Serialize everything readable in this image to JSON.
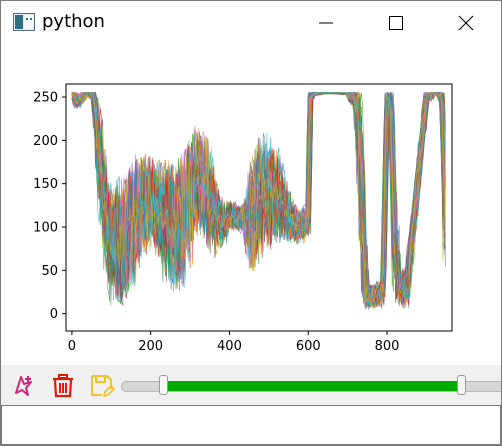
{
  "window": {
    "title": "python"
  },
  "icons": {
    "app": "python-window-icon",
    "minimize": "minimize-icon",
    "maximize": "maximize-icon",
    "close": "close-icon"
  },
  "toolbar": {
    "buttons": [
      {
        "name": "select-tool-button",
        "icon": "magic-select-icon",
        "color": "#d4237a"
      },
      {
        "name": "delete-button",
        "icon": "trash-icon",
        "color": "#d81e06"
      },
      {
        "name": "save-button",
        "icon": "save-icon",
        "color": "#f4ea2a"
      }
    ],
    "range_slider": {
      "min": 0,
      "max": 1,
      "low": 0.11,
      "high": 0.89,
      "fill_color": "#00aa00"
    }
  },
  "status": {
    "text": ""
  },
  "chart_data": {
    "type": "line",
    "title": "",
    "xlabel": "",
    "ylabel": "",
    "xlim": [
      -15,
      965
    ],
    "ylim": [
      -20,
      265
    ],
    "xticks": [
      0,
      200,
      400,
      600,
      800
    ],
    "yticks": [
      0,
      50,
      100,
      150,
      200,
      250
    ],
    "grid": false,
    "legend": "none",
    "series_count": 60,
    "x_points": 950,
    "colors": [
      "#1f77b4",
      "#ff7f0e",
      "#2ca02c",
      "#d62728",
      "#9467bd",
      "#8c564b",
      "#e377c2",
      "#7f7f7f",
      "#bcbd22",
      "#17becf"
    ],
    "profile": {
      "x": [
        0,
        10,
        40,
        55,
        70,
        80,
        95,
        110,
        130,
        150,
        170,
        200,
        230,
        260,
        280,
        300,
        320,
        340,
        360,
        370,
        385,
        400,
        420,
        440,
        450,
        460,
        470,
        480,
        500,
        520,
        540,
        560,
        580,
        590,
        600,
        605,
        615,
        640,
        700,
        720,
        730,
        740,
        750,
        770,
        790,
        800,
        810,
        820,
        830,
        850,
        900,
        920,
        930,
        940,
        949
      ],
      "y": [
        255,
        245,
        255,
        255,
        180,
        140,
        90,
        80,
        85,
        100,
        120,
        130,
        110,
        100,
        110,
        130,
        160,
        140,
        120,
        110,
        100,
        115,
        110,
        110,
        105,
        110,
        125,
        140,
        140,
        140,
        120,
        105,
        100,
        105,
        110,
        250,
        255,
        255,
        255,
        250,
        200,
        70,
        20,
        20,
        25,
        250,
        240,
        80,
        30,
        30,
        250,
        255,
        255,
        250,
        100
      ],
      "spread": [
        3,
        10,
        5,
        10,
        60,
        70,
        75,
        80,
        80,
        75,
        70,
        55,
        70,
        80,
        80,
        75,
        60,
        70,
        60,
        40,
        25,
        20,
        15,
        20,
        60,
        70,
        75,
        70,
        70,
        60,
        40,
        25,
        20,
        20,
        20,
        8,
        4,
        2,
        3,
        20,
        80,
        60,
        15,
        15,
        20,
        10,
        30,
        60,
        25,
        25,
        10,
        3,
        3,
        15,
        70
      ]
    }
  }
}
